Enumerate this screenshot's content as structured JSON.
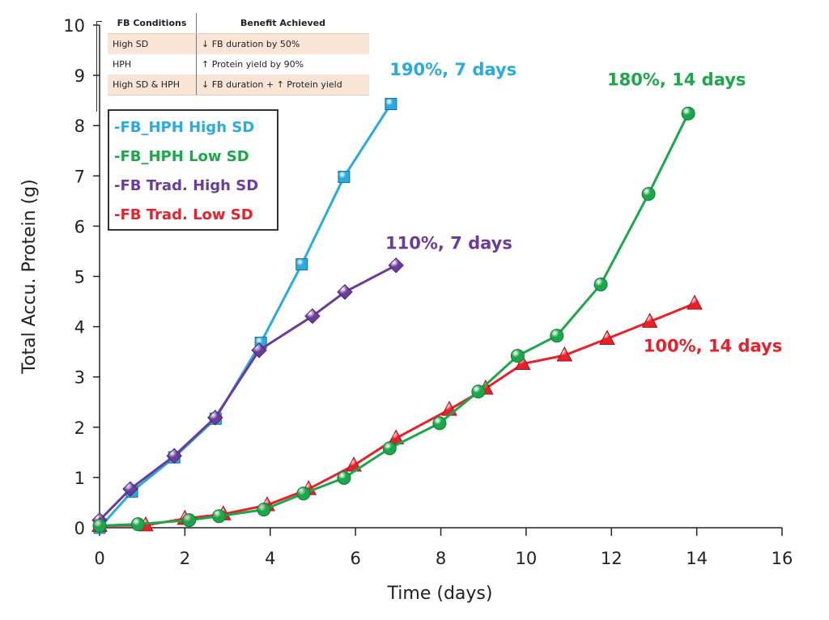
{
  "chart_data": {
    "type": "line",
    "title": "",
    "xlabel": "Time (days)",
    "ylabel": "Total Accu. Protein (g)",
    "xlim": [
      0,
      16
    ],
    "ylim": [
      0,
      10
    ],
    "xticks": [
      "0",
      "2",
      "4",
      "6",
      "8",
      "10",
      "12",
      "14",
      "16"
    ],
    "yticks": [
      "0",
      "1",
      "2",
      "3",
      "4",
      "5",
      "6",
      "7",
      "8",
      "9",
      "10"
    ],
    "grid": false,
    "legend_position": "top-left",
    "series": [
      {
        "name": "-FB_HPH  High SD",
        "color": "#29abe2",
        "marker": "square",
        "points": [
          [
            0,
            0
          ],
          [
            0.76,
            0.72
          ],
          [
            1.75,
            1.4
          ],
          [
            2.72,
            2.17
          ],
          [
            3.78,
            3.68
          ],
          [
            4.74,
            5.24
          ],
          [
            5.73,
            6.98
          ],
          [
            6.83,
            8.43
          ]
        ]
      },
      {
        "name": "-FB_HPH  Low SD",
        "color": "#1aa84a",
        "marker": "circle",
        "points": [
          [
            0,
            0.04
          ],
          [
            0.9,
            0.07
          ],
          [
            2.1,
            0.15
          ],
          [
            2.8,
            0.23
          ],
          [
            3.85,
            0.36
          ],
          [
            4.78,
            0.68
          ],
          [
            5.73,
            0.99
          ],
          [
            6.8,
            1.58
          ],
          [
            7.97,
            2.08
          ],
          [
            8.88,
            2.71
          ],
          [
            9.8,
            3.42
          ],
          [
            10.72,
            3.82
          ],
          [
            11.75,
            4.84
          ],
          [
            12.87,
            6.64
          ],
          [
            13.8,
            8.24
          ]
        ]
      },
      {
        "name": "-FB Trad. High SD",
        "color": "#6a3d9a",
        "marker": "diamond",
        "points": [
          [
            0,
            0.15
          ],
          [
            0.72,
            0.77
          ],
          [
            1.75,
            1.43
          ],
          [
            2.71,
            2.19
          ],
          [
            3.74,
            3.53
          ],
          [
            4.99,
            4.21
          ],
          [
            5.75,
            4.69
          ],
          [
            6.95,
            5.22
          ]
        ]
      },
      {
        "name": "-FB Trad. Low SD",
        "color": "#e8202a",
        "marker": "triangle",
        "points": [
          [
            0,
            0.04
          ],
          [
            1.08,
            0.05
          ],
          [
            2.0,
            0.18
          ],
          [
            2.9,
            0.27
          ],
          [
            3.93,
            0.45
          ],
          [
            4.9,
            0.77
          ],
          [
            5.96,
            1.24
          ],
          [
            6.95,
            1.78
          ],
          [
            8.2,
            2.35
          ],
          [
            9.05,
            2.77
          ],
          [
            9.92,
            3.26
          ],
          [
            10.9,
            3.43
          ],
          [
            11.9,
            3.76
          ],
          [
            12.9,
            4.1
          ],
          [
            13.95,
            4.46
          ]
        ]
      }
    ],
    "annotations": [
      {
        "text": "190%, 7 days",
        "color": "#29abe2",
        "x": 6.8,
        "y": 9.0
      },
      {
        "text": "180%, 14 days",
        "color": "#1aa84a",
        "x": 11.9,
        "y": 8.8
      },
      {
        "text": "110%, 7 days",
        "color": "#6a3d9a",
        "x": 6.7,
        "y": 5.55
      },
      {
        "text": "100%, 14 days",
        "color": "#e8202a",
        "x": 12.75,
        "y": 3.5
      }
    ]
  },
  "table": {
    "headers": [
      "FB Conditions",
      "Benefit Achieved"
    ],
    "rows": [
      [
        "High SD",
        "↓ FB duration by 50%"
      ],
      [
        "HPH",
        "↑ Protein yield by 90%"
      ],
      [
        "High SD & HPH",
        "↓ FB duration + ↑ Protein yield"
      ]
    ]
  }
}
